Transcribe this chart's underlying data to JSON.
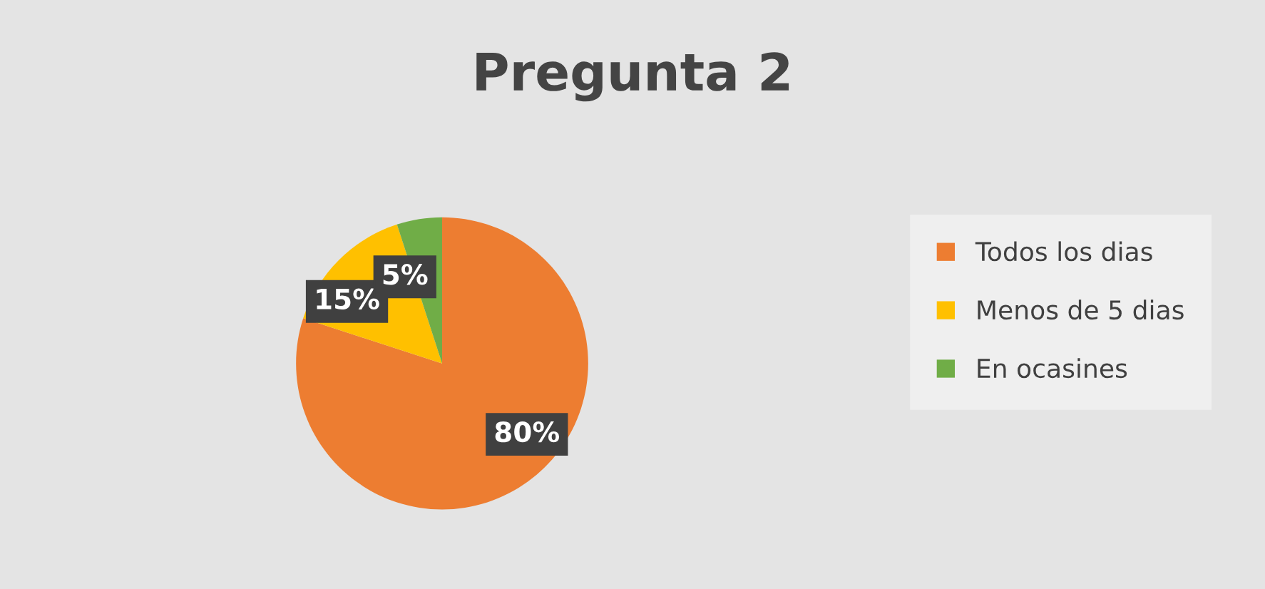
{
  "chart_data": {
    "type": "pie",
    "title": "Pregunta 2",
    "categories": [
      "Todos los dias",
      "Menos de 5 dias",
      "En ocasines"
    ],
    "values": [
      80,
      15,
      5
    ],
    "colors": [
      "#ed7d31",
      "#ffc000",
      "#70ad47"
    ],
    "value_labels": [
      "80%",
      "15%",
      "5%"
    ],
    "legend": "right"
  }
}
